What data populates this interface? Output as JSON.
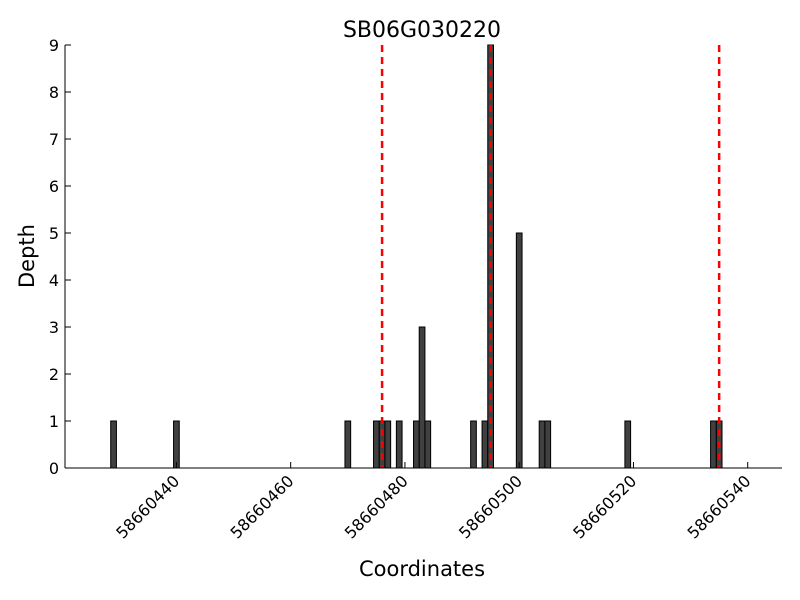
{
  "chart_data": {
    "type": "bar",
    "title": "SB06G030220",
    "xlabel": "Coordinates",
    "ylabel": "Depth",
    "xlim": [
      58660420.5,
      58660546
    ],
    "ylim": [
      0,
      9
    ],
    "xticks": [
      "58660440",
      "58660460",
      "58660480",
      "58660500",
      "58660520",
      "58660540"
    ],
    "yticks": [
      "0",
      "1",
      "2",
      "3",
      "4",
      "5",
      "6",
      "7",
      "8",
      "9"
    ],
    "bar_color": "#404040",
    "marker_line_color": "#ff0000",
    "marker_line_style": "dashed",
    "markers_x": [
      58660476,
      58660495,
      58660535
    ],
    "points": [
      {
        "x": 58660429,
        "y": 1
      },
      {
        "x": 58660440,
        "y": 1
      },
      {
        "x": 58660470,
        "y": 1
      },
      {
        "x": 58660475,
        "y": 1
      },
      {
        "x": 58660476,
        "y": 1
      },
      {
        "x": 58660477,
        "y": 1
      },
      {
        "x": 58660479,
        "y": 1
      },
      {
        "x": 58660482,
        "y": 1
      },
      {
        "x": 58660483,
        "y": 3
      },
      {
        "x": 58660484,
        "y": 1
      },
      {
        "x": 58660492,
        "y": 1
      },
      {
        "x": 58660494,
        "y": 1
      },
      {
        "x": 58660495,
        "y": 9
      },
      {
        "x": 58660500,
        "y": 5
      },
      {
        "x": 58660504,
        "y": 1
      },
      {
        "x": 58660505,
        "y": 1
      },
      {
        "x": 58660519,
        "y": 1
      },
      {
        "x": 58660534,
        "y": 1
      },
      {
        "x": 58660535,
        "y": 1
      }
    ],
    "grid": false,
    "legend": "none"
  }
}
